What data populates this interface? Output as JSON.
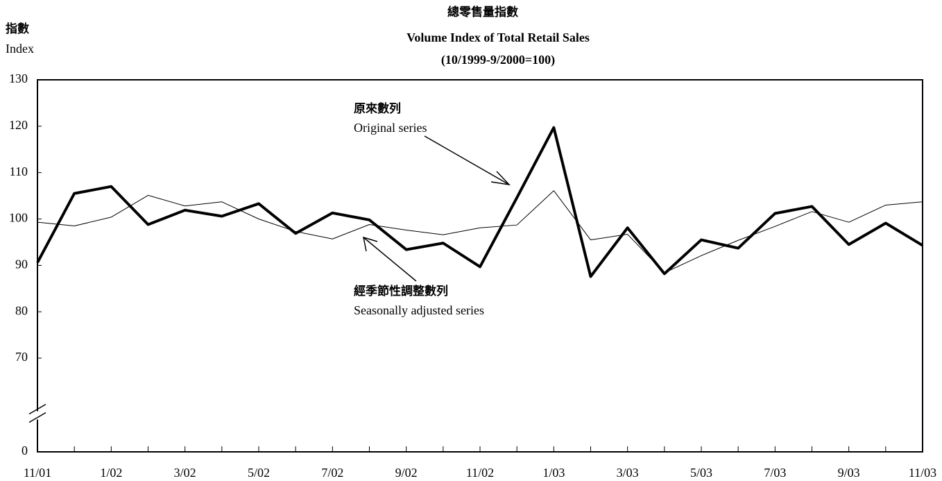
{
  "chart_data": {
    "type": "line",
    "title": "總零售量指數",
    "subtitle": [
      "Volume Index of Total Retail Sales",
      "(10/1999-9/2000=100)"
    ],
    "y_label": [
      "指數",
      "Index"
    ],
    "categories": [
      "11/01",
      null,
      "1/02",
      null,
      "3/02",
      null,
      "5/02",
      null,
      "7/02",
      null,
      "9/02",
      null,
      "11/02",
      null,
      "1/03",
      null,
      "3/03",
      null,
      "5/03",
      null,
      "7/03",
      null,
      "9/03",
      null,
      "11/03"
    ],
    "series": [
      {
        "name": [
          "原來數列",
          "Original series"
        ],
        "color": "#000000",
        "width": 4,
        "values": [
          90.6,
          105.5,
          107.0,
          98.8,
          101.9,
          100.6,
          103.3,
          96.9,
          101.3,
          99.8,
          93.4,
          94.8,
          89.7,
          104.6,
          119.7,
          87.6,
          98.1,
          88.2,
          95.5,
          93.7,
          101.2,
          102.7,
          94.5,
          99.1,
          94.3
        ]
      },
      {
        "name": [
          "經季節性調整數列",
          "Seasonally adjusted series"
        ],
        "color": "#000000",
        "width": 1,
        "values": [
          99.3,
          98.5,
          100.4,
          105.1,
          102.8,
          103.7,
          100.0,
          97.3,
          95.7,
          98.8,
          97.6,
          96.6,
          98.1,
          98.7,
          106.1,
          95.5,
          96.7,
          88.4,
          92.1,
          95.4,
          98.4,
          101.6,
          99.3,
          103.0,
          103.7
        ]
      }
    ],
    "ylim": [
      0,
      130
    ],
    "y_break": [
      0,
      70
    ],
    "yticks": [
      0,
      70,
      80,
      90,
      100,
      110,
      120,
      130
    ],
    "grid": false
  }
}
